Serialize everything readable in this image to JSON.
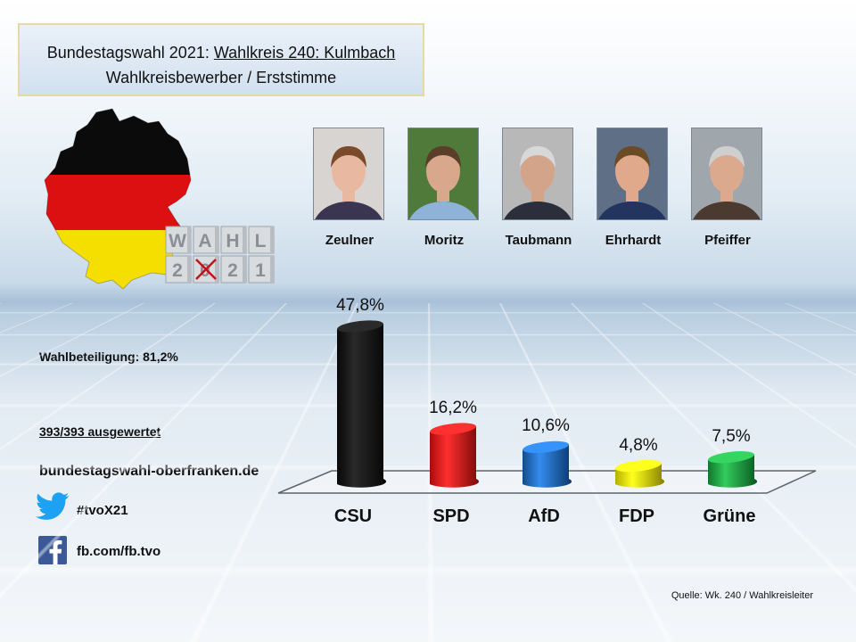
{
  "title": {
    "prefix": "Bundestagswahl  2021: ",
    "constituency": "Wahlkreis 240: Kulmbach",
    "subtitle": "Wahlkreisbewerber  / Erststimme"
  },
  "wahl_logo": {
    "letters_top": [
      "W",
      "A",
      "H",
      "L"
    ],
    "letters_bottom": [
      "2",
      "0",
      "2",
      "1"
    ]
  },
  "candidates": [
    {
      "name": "Zeulner",
      "bg": "#d8d4d2",
      "skin": "#e8b9a0",
      "hair": "#7a4a2a",
      "shirt": "#3a3550"
    },
    {
      "name": "Moritz",
      "bg": "#4f7a3a",
      "skin": "#d9a78c",
      "hair": "#5a3e2a",
      "shirt": "#8fb3d8"
    },
    {
      "name": "Taubmann",
      "bg": "#b8b8b8",
      "skin": "#d4a48a",
      "hair": "#d8d8d8",
      "shirt": "#2b2f3c"
    },
    {
      "name": "Ehrhardt",
      "bg": "#5f6f86",
      "skin": "#e0a98c",
      "hair": "#6b4a26",
      "shirt": "#23345e"
    },
    {
      "name": "Pfeiffer",
      "bg": "#9fa7ad",
      "skin": "#dba98e",
      "hair": "#cfcfcf",
      "shirt": "#4a3a30"
    }
  ],
  "info": {
    "turnout": "Wahlbeteiligung: 81,2%",
    "counted": "393/393 ausgewertet",
    "website": "bundestagswahl-oberfranken.de",
    "twitter": "#tvoX21",
    "facebook": "fb.com/fb.tvo"
  },
  "source": "Quelle: Wk. 240 / Wahlkreisleiter",
  "chart_data": {
    "type": "bar",
    "title": "Bundestagswahl 2021: Wahlkreis 240: Kulmbach – Wahlkreisbewerber / Erststimme",
    "categories": [
      "CSU",
      "SPD",
      "AfD",
      "FDP",
      "Grüne"
    ],
    "values": [
      47.8,
      16.2,
      10.6,
      4.8,
      7.5
    ],
    "labels": [
      "47,8%",
      "16,2%",
      "10,6%",
      "4,8%",
      "7,5%"
    ],
    "colors": [
      "#0a0a0a",
      "#e01010",
      "#1466c0",
      "#f2e800",
      "#13a03a"
    ],
    "unit": "%",
    "ylim": [
      0,
      50
    ],
    "xlabel": "",
    "ylabel": ""
  }
}
